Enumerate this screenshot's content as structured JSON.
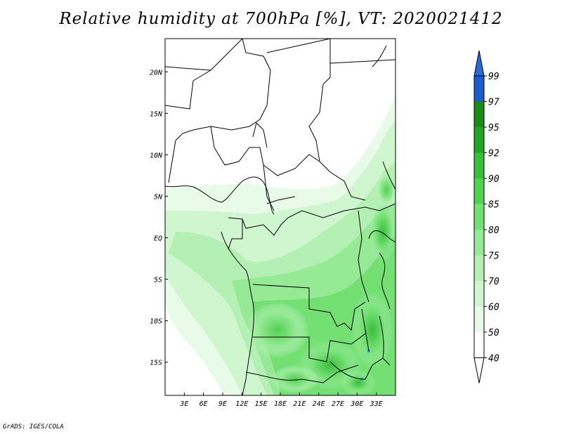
{
  "title": "Relative humidity at 700hPa [%], VT: 2020021412",
  "credit": "GrADS: IGES/COLA",
  "map": {
    "lon_range": [
      0,
      36
    ],
    "lat_range": [
      -19,
      24
    ],
    "lat_ticks": [
      {
        "value": 20,
        "label": "20N"
      },
      {
        "value": 15,
        "label": "15N"
      },
      {
        "value": 10,
        "label": "10N"
      },
      {
        "value": 5,
        "label": "5N"
      },
      {
        "value": 0,
        "label": "EQ"
      },
      {
        "value": -5,
        "label": "5S"
      },
      {
        "value": -10,
        "label": "10S"
      },
      {
        "value": -15,
        "label": "15S"
      }
    ],
    "lon_ticks": [
      {
        "value": 3,
        "label": "3E"
      },
      {
        "value": 6,
        "label": "6E"
      },
      {
        "value": 9,
        "label": "9E"
      },
      {
        "value": 12,
        "label": "12E"
      },
      {
        "value": 15,
        "label": "15E"
      },
      {
        "value": 18,
        "label": "18E"
      },
      {
        "value": 21,
        "label": "21E"
      },
      {
        "value": 24,
        "label": "24E"
      },
      {
        "value": 27,
        "label": "27E"
      },
      {
        "value": 30,
        "label": "30E"
      },
      {
        "value": 33,
        "label": "33E"
      }
    ]
  },
  "colorbar": {
    "levels": [
      "99",
      "97",
      "95",
      "92",
      "90",
      "85",
      "80",
      "75",
      "70",
      "60",
      "50",
      "40"
    ],
    "colors": [
      "#1c5ccc",
      "#3c8ae6",
      "#1a8a1a",
      "#26a326",
      "#3cbc3c",
      "#52d052",
      "#74e074",
      "#96ea96",
      "#b4f0b4",
      "#cff6cf",
      "#e8fbe8",
      "#ffffff"
    ],
    "top_arrow_color": "#2a6ad6"
  },
  "colors": {
    "land_line": "#000000",
    "frame": "#000000"
  }
}
